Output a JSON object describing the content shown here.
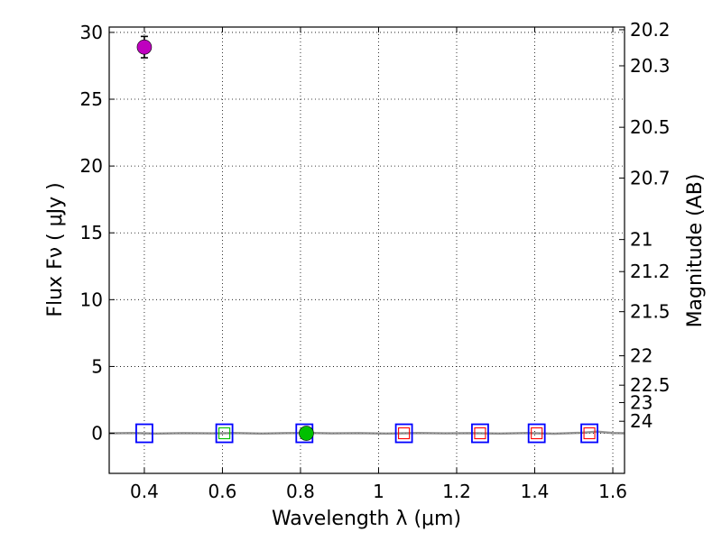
{
  "chart_data": {
    "type": "scatter",
    "title": "",
    "xlabel": "Wavelength  λ (μm)",
    "ylabel": "Flux  Fν  ( μJy )",
    "y2label": "Magnitude (AB)",
    "xlim": [
      0.31,
      1.63
    ],
    "ylim": [
      -3,
      30.4
    ],
    "grid": true,
    "x_ticks": [
      0.4,
      0.6,
      0.8,
      1.0,
      1.2,
      1.4,
      1.6
    ],
    "x_tick_labels": [
      "0.4",
      "0.6",
      "0.8",
      "1",
      "1.2",
      "1.4",
      "1.6"
    ],
    "y_ticks": [
      0,
      5,
      10,
      15,
      20,
      25,
      30
    ],
    "y_tick_labels": [
      "0",
      "5",
      "10",
      "15",
      "20",
      "25",
      "30"
    ],
    "mag_ticks": [
      {
        "label": "20.2",
        "flux": 30.2
      },
      {
        "label": "20.3",
        "flux": 27.5
      },
      {
        "label": "20.5",
        "flux": 22.9
      },
      {
        "label": "20.7",
        "flux": 19.1
      },
      {
        "label": "21",
        "flux": 14.5
      },
      {
        "label": "21.2",
        "flux": 12.1
      },
      {
        "label": "21.5",
        "flux": 9.1
      },
      {
        "label": "22",
        "flux": 5.8
      },
      {
        "label": "22.5",
        "flux": 3.6
      },
      {
        "label": "23",
        "flux": 2.3
      },
      {
        "label": "24",
        "flux": 0.9
      }
    ],
    "series": [
      {
        "name": "detection",
        "marker": "circle",
        "color": "#bf00bf",
        "points": [
          {
            "x": 0.4,
            "y": 28.9,
            "err": 0.8
          }
        ]
      },
      {
        "name": "detection-green",
        "marker": "circle",
        "color": "#00bf00",
        "points": [
          {
            "x": 0.815,
            "y": 0.0,
            "err": 0.1
          }
        ]
      },
      {
        "name": "model-blue",
        "marker": "open-square",
        "color": "#0000ff",
        "points": [
          {
            "x": 0.4,
            "y": 0
          },
          {
            "x": 0.605,
            "y": 0
          },
          {
            "x": 0.81,
            "y": 0
          },
          {
            "x": 1.065,
            "y": 0
          },
          {
            "x": 1.26,
            "y": 0
          },
          {
            "x": 1.405,
            "y": 0
          },
          {
            "x": 1.54,
            "y": 0
          }
        ]
      },
      {
        "name": "nondetection-red",
        "marker": "small-open-square",
        "color": "#ff0000",
        "points": [
          {
            "x": 1.065,
            "y": 0
          },
          {
            "x": 1.26,
            "y": 0
          },
          {
            "x": 1.405,
            "y": 0
          },
          {
            "x": 1.54,
            "y": 0
          }
        ]
      },
      {
        "name": "nondetection-green",
        "marker": "small-open-square",
        "color": "#00bf00",
        "points": [
          {
            "x": 0.605,
            "y": 0
          }
        ]
      }
    ],
    "spectrum": {
      "name": "spectrum",
      "color": "#808080",
      "x": [
        0.31,
        0.37,
        0.43,
        0.5,
        0.57,
        0.63,
        0.7,
        0.76,
        0.82,
        0.88,
        0.95,
        1.02,
        1.1,
        1.17,
        1.24,
        1.31,
        1.38,
        1.45,
        1.52,
        1.56,
        1.6,
        1.63
      ],
      "y": [
        0,
        0.02,
        -0.02,
        0.01,
        -0.01,
        0.02,
        -0.02,
        0.01,
        0.03,
        -0.01,
        0.01,
        -0.02,
        0.02,
        -0.01,
        0.01,
        -0.02,
        0.02,
        -0.03,
        0.04,
        0.12,
        0.02,
        0.0
      ]
    }
  }
}
